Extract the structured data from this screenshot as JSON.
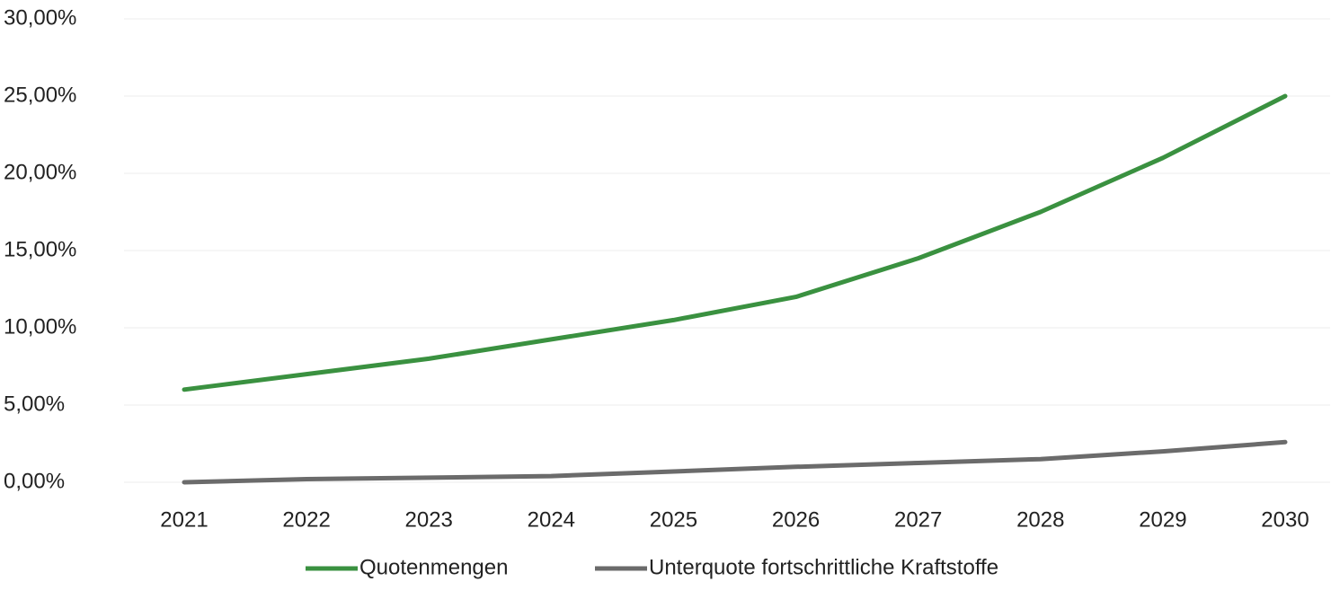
{
  "chart_data": {
    "type": "line",
    "categories": [
      "2021",
      "2022",
      "2023",
      "2024",
      "2025",
      "2026",
      "2027",
      "2028",
      "2029",
      "2030"
    ],
    "series": [
      {
        "name": "Quotenmengen",
        "color": "#3a9140",
        "values": [
          6,
          7,
          8,
          9.25,
          10.5,
          12,
          14.5,
          17.5,
          21,
          25
        ]
      },
      {
        "name": "Unterquote fortschrittliche Kraftstoffe",
        "color": "#6b6b6b",
        "values": [
          0,
          0.2,
          0.3,
          0.4,
          0.7,
          1.0,
          1.25,
          1.5,
          2.0,
          2.6
        ]
      }
    ],
    "ylim": [
      0,
      30
    ],
    "yticks": [
      {
        "value": 0,
        "label": "0,00%"
      },
      {
        "value": 5,
        "label": "5,00%"
      },
      {
        "value": 10,
        "label": "10,00%"
      },
      {
        "value": 15,
        "label": "15,00%"
      },
      {
        "value": 20,
        "label": "20,00%"
      },
      {
        "value": 25,
        "label": "25,00%"
      },
      {
        "value": 30,
        "label": "30,00%"
      }
    ],
    "grid": true,
    "legend": "bottom"
  }
}
